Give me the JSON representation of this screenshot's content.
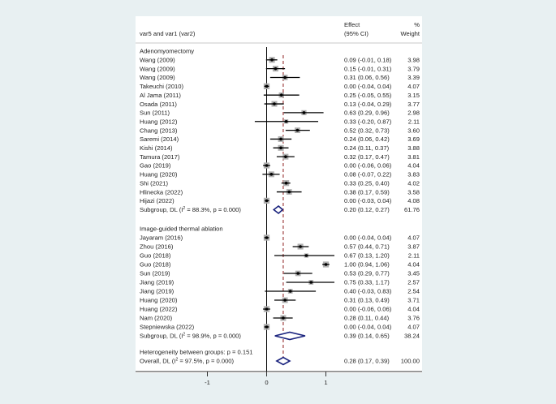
{
  "chart_data": {
    "type": "forest",
    "header": {
      "study_label": "var5 and var1 (var2)",
      "effect_label_1": "Effect",
      "effect_label_2": "(95% CI)",
      "weight_label_1": "%",
      "weight_label_2": "Weight"
    },
    "xticks": [
      -1,
      0,
      1
    ],
    "xtick_labels": [
      "-1",
      "0",
      "1"
    ],
    "null_line": 0,
    "overall_line": 0.28,
    "groups": [
      {
        "name": "Adenomyomectomy",
        "studies": [
          {
            "label": "Wang (2009)",
            "es": 0.09,
            "lo": -0.01,
            "hi": 0.18,
            "ci_text": "0.09 (-0.01, 0.18)",
            "weight": "3.98"
          },
          {
            "label": "Wang (2009)",
            "es": 0.15,
            "lo": -0.01,
            "hi": 0.31,
            "ci_text": "0.15 (-0.01, 0.31)",
            "weight": "3.79"
          },
          {
            "label": "Wang (2009)",
            "es": 0.31,
            "lo": 0.06,
            "hi": 0.56,
            "ci_text": "0.31 (0.06, 0.56)",
            "weight": "3.39"
          },
          {
            "label": "Takeuchi (2010)",
            "es": 0.0,
            "lo": -0.04,
            "hi": 0.04,
            "ci_text": "0.00 (-0.04, 0.04)",
            "weight": "4.07"
          },
          {
            "label": "Al Jama (2011)",
            "es": 0.25,
            "lo": -0.05,
            "hi": 0.55,
            "ci_text": "0.25 (-0.05, 0.55)",
            "weight": "3.15"
          },
          {
            "label": "Osada (2011)",
            "es": 0.13,
            "lo": -0.04,
            "hi": 0.29,
            "ci_text": "0.13 (-0.04, 0.29)",
            "weight": "3.77"
          },
          {
            "label": "Sun (2011)",
            "es": 0.63,
            "lo": 0.29,
            "hi": 0.96,
            "ci_text": "0.63 (0.29, 0.96)",
            "weight": "2.98"
          },
          {
            "label": "Huang (2012)",
            "es": 0.33,
            "lo": -0.2,
            "hi": 0.87,
            "ci_text": "0.33 (-0.20, 0.87)",
            "weight": "2.11"
          },
          {
            "label": "Chang (2013)",
            "es": 0.52,
            "lo": 0.32,
            "hi": 0.73,
            "ci_text": "0.52 (0.32, 0.73)",
            "weight": "3.60"
          },
          {
            "label": "Saremi (2014)",
            "es": 0.24,
            "lo": 0.06,
            "hi": 0.42,
            "ci_text": "0.24 (0.06, 0.42)",
            "weight": "3.69"
          },
          {
            "label": "Kishi (2014)",
            "es": 0.24,
            "lo": 0.11,
            "hi": 0.37,
            "ci_text": "0.24 (0.11, 0.37)",
            "weight": "3.88"
          },
          {
            "label": "Tamura (2017)",
            "es": 0.32,
            "lo": 0.17,
            "hi": 0.47,
            "ci_text": "0.32 (0.17, 0.47)",
            "weight": "3.81"
          },
          {
            "label": "Gao (2019)",
            "es": 0.0,
            "lo": -0.06,
            "hi": 0.06,
            "ci_text": "0.00 (-0.06, 0.06)",
            "weight": "4.04"
          },
          {
            "label": "Huang (2020)",
            "es": 0.08,
            "lo": -0.07,
            "hi": 0.22,
            "ci_text": "0.08 (-0.07, 0.22)",
            "weight": "3.83"
          },
          {
            "label": "Shi (2021)",
            "es": 0.33,
            "lo": 0.25,
            "hi": 0.4,
            "ci_text": "0.33 (0.25, 0.40)",
            "weight": "4.02"
          },
          {
            "label": "Hlinecka (2022)",
            "es": 0.38,
            "lo": 0.17,
            "hi": 0.59,
            "ci_text": "0.38 (0.17, 0.59)",
            "weight": "3.58"
          },
          {
            "label": "Hijazi (2022)",
            "es": 0.0,
            "lo": -0.03,
            "hi": 0.04,
            "ci_text": "0.00 (-0.03, 0.04)",
            "weight": "4.08"
          }
        ],
        "subgroup": {
          "label_pre": "Subgroup, DL (I",
          "sup": "2",
          "label_post": " = 88.3%, p = 0.000)",
          "es": 0.2,
          "lo": 0.12,
          "hi": 0.27,
          "ci_text": "0.20 (0.12, 0.27)",
          "weight": "61.76"
        }
      },
      {
        "name": "Image-guided thermal ablation",
        "studies": [
          {
            "label": "Jayaram (2016)",
            "es": 0.0,
            "lo": -0.04,
            "hi": 0.04,
            "ci_text": "0.00 (-0.04, 0.04)",
            "weight": "4.07"
          },
          {
            "label": "Zhou (2016)",
            "es": 0.57,
            "lo": 0.44,
            "hi": 0.71,
            "ci_text": "0.57 (0.44, 0.71)",
            "weight": "3.87"
          },
          {
            "label": "Guo (2018)",
            "es": 0.67,
            "lo": 0.13,
            "hi": 1.2,
            "ci_text": "0.67 (0.13, 1.20)",
            "weight": "2.11"
          },
          {
            "label": "Guo (2018)",
            "es": 1.0,
            "lo": 0.94,
            "hi": 1.06,
            "ci_text": "1.00 (0.94, 1.06)",
            "weight": "4.04"
          },
          {
            "label": "Sun (2019)",
            "es": 0.53,
            "lo": 0.29,
            "hi": 0.77,
            "ci_text": "0.53 (0.29, 0.77)",
            "weight": "3.45"
          },
          {
            "label": "Jiang (2019)",
            "es": 0.75,
            "lo": 0.33,
            "hi": 1.17,
            "ci_text": "0.75 (0.33, 1.17)",
            "weight": "2.57"
          },
          {
            "label": "Jiang (2019)",
            "es": 0.4,
            "lo": -0.03,
            "hi": 0.83,
            "ci_text": "0.40 (-0.03, 0.83)",
            "weight": "2.54"
          },
          {
            "label": "Huang (2020)",
            "es": 0.31,
            "lo": 0.13,
            "hi": 0.49,
            "ci_text": "0.31 (0.13, 0.49)",
            "weight": "3.71"
          },
          {
            "label": "Huang (2022)",
            "es": 0.0,
            "lo": -0.06,
            "hi": 0.06,
            "ci_text": "0.00 (-0.06, 0.06)",
            "weight": "4.04"
          },
          {
            "label": "Nam (2020)",
            "es": 0.28,
            "lo": 0.11,
            "hi": 0.44,
            "ci_text": "0.28 (0.11, 0.44)",
            "weight": "3.76"
          },
          {
            "label": "Stepniewska (2022)",
            "es": 0.0,
            "lo": -0.04,
            "hi": 0.04,
            "ci_text": "0.00 (-0.04, 0.04)",
            "weight": "4.07"
          }
        ],
        "subgroup": {
          "label_pre": "Subgroup, DL (I",
          "sup": "2",
          "label_post": " = 98.9%, p = 0.000)",
          "es": 0.39,
          "lo": 0.14,
          "hi": 0.65,
          "ci_text": "0.39 (0.14, 0.65)",
          "weight": "38.24"
        }
      }
    ],
    "heterogeneity": "Heterogeneity between groups: p = 0.151",
    "overall": {
      "label_pre": "Overall, DL (I",
      "sup": "2",
      "label_post": " = 97.5%, p = 0.000)",
      "es": 0.28,
      "lo": 0.17,
      "hi": 0.39,
      "ci_text": "0.28 (0.17, 0.39)",
      "weight": "100.00"
    },
    "colors": {
      "diamond": "#1a237e",
      "overall_line": "#8b1a1a",
      "square": "#b0b0b0",
      "background": "#e8f0f2"
    }
  }
}
